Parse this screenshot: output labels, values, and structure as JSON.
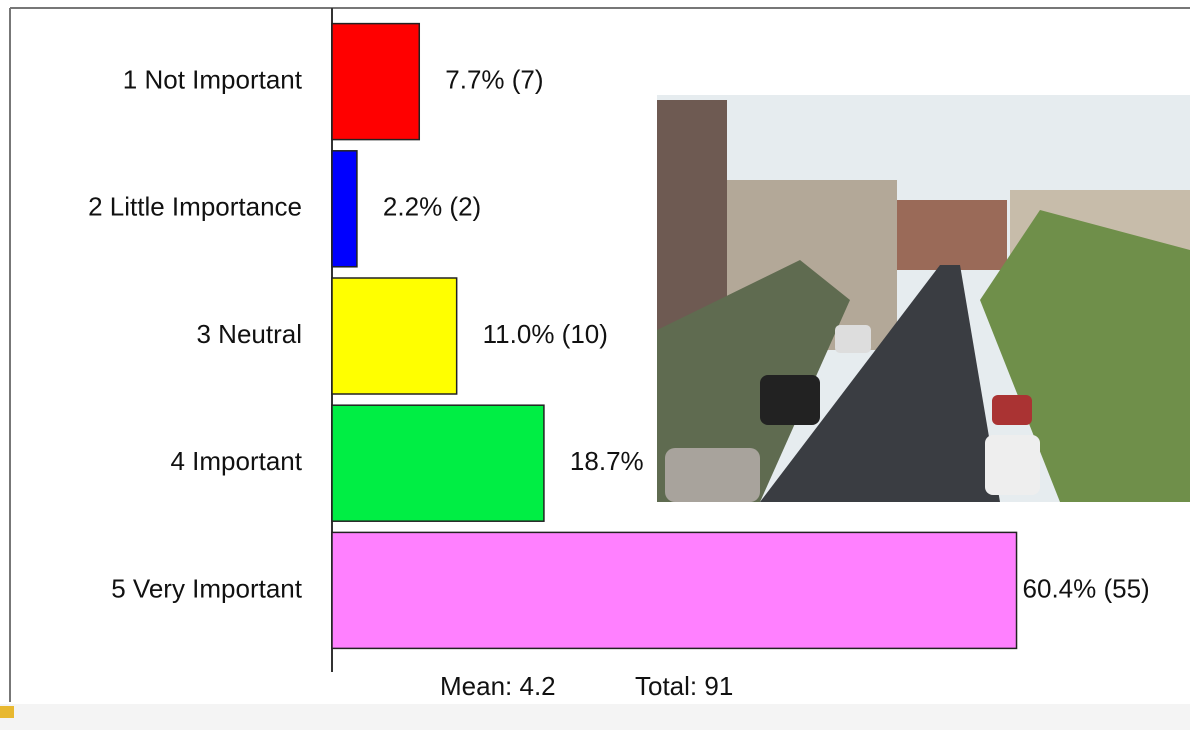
{
  "chart_data": {
    "type": "hbar",
    "categories": [
      "1 Not Important",
      "2 Little Importance",
      "3 Neutral",
      "4 Important",
      "5 Very Important"
    ],
    "values": [
      7.7,
      2.2,
      11.0,
      18.7,
      60.4
    ],
    "value_labels": [
      "7.7% (7)",
      "2.2% (2)",
      "11.0% (10)",
      "18.7%",
      "60.4% (55)"
    ],
    "colors": [
      "#ff0000",
      "#0000ff",
      "#ffff00",
      "#00ee44",
      "#ff80ff"
    ],
    "xlim": [
      0,
      75
    ],
    "annotations": [
      "Mean: 4.2",
      "Total: 91"
    ]
  }
}
